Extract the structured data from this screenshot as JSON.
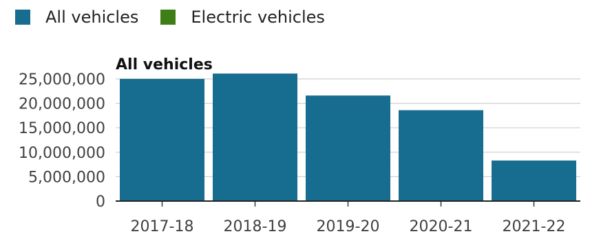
{
  "legend": [
    {
      "label": "All vehicles",
      "color": "#176d8f"
    },
    {
      "label": "Electric vehicles",
      "color": "#3f7e16"
    }
  ],
  "chart_data": {
    "type": "bar",
    "title": "All vehicles",
    "categories": [
      "2017-18",
      "2018-19",
      "2019-20",
      "2020-21",
      "2021-22"
    ],
    "series": [
      {
        "name": "All vehicles",
        "values": [
          25000000,
          26100000,
          21600000,
          18600000,
          8300000
        ],
        "color": "#176d8f"
      }
    ],
    "ylim": [
      0,
      25000000
    ],
    "yticks": [
      0,
      5000000,
      10000000,
      15000000,
      20000000,
      25000000
    ],
    "ytick_labels": [
      "0",
      "5,000,000",
      "10,000,000",
      "15,000,000",
      "20,000,000",
      "25,000,000"
    ],
    "grid": true,
    "legend_position": "top-left"
  }
}
